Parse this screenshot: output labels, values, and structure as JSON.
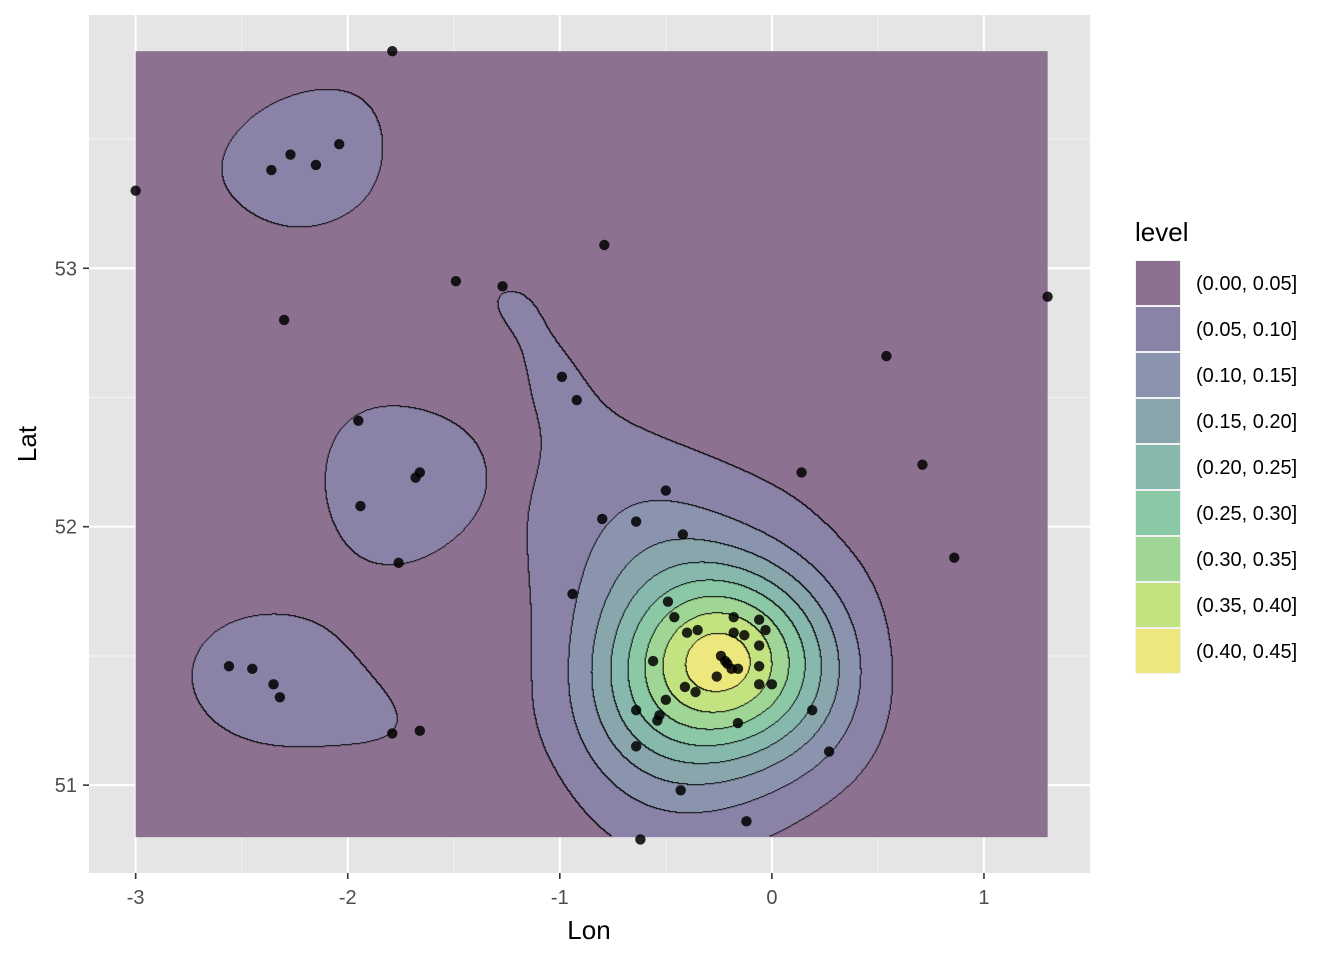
{
  "chart_data": {
    "type": "contour",
    "title": "",
    "xlabel": "Lon",
    "ylabel": "Lat",
    "xlim": [
      -3.22,
      1.5
    ],
    "ylim": [
      50.66,
      53.98
    ],
    "x_ticks": [
      -3,
      -2,
      -1,
      0,
      1
    ],
    "x_tick_labels": [
      "-3",
      "-2",
      "-1",
      "0",
      "1"
    ],
    "y_ticks": [
      51,
      52,
      53
    ],
    "y_tick_labels": [
      "51",
      "52",
      "53"
    ],
    "grid": true,
    "background": "#e5e5e5",
    "fill_extent": {
      "x": [
        -3.0,
        1.3
      ],
      "y": [
        50.8,
        53.84
      ]
    },
    "legend": {
      "title": "level",
      "position": "right",
      "entries": [
        {
          "label": "(0.00, 0.05]",
          "color": "#8c7290"
        },
        {
          "label": "(0.05, 0.10]",
          "color": "#8b82a8"
        },
        {
          "label": "(0.10, 0.15]",
          "color": "#8b94ae"
        },
        {
          "label": "(0.15, 0.20]",
          "color": "#89a6ad"
        },
        {
          "label": "(0.20, 0.25]",
          "color": "#86b8ad"
        },
        {
          "label": "(0.25, 0.30]",
          "color": "#8bc8a6"
        },
        {
          "label": "(0.30, 0.35]",
          "color": "#9fd696"
        },
        {
          "label": "(0.35, 0.40]",
          "color": "#c3e280"
        },
        {
          "label": "(0.40, 0.45]",
          "color": "#ede87e"
        }
      ]
    },
    "points": [
      [
        -3.0,
        53.3
      ],
      [
        -1.79,
        53.84
      ],
      [
        -2.04,
        53.48
      ],
      [
        -2.27,
        53.44
      ],
      [
        -2.15,
        53.4
      ],
      [
        -2.36,
        53.38
      ],
      [
        -0.79,
        53.09
      ],
      [
        -1.49,
        52.95
      ],
      [
        -1.27,
        52.93
      ],
      [
        -2.3,
        52.8
      ],
      [
        1.3,
        52.89
      ],
      [
        0.54,
        52.66
      ],
      [
        -0.99,
        52.58
      ],
      [
        -0.92,
        52.49
      ],
      [
        -1.95,
        52.41
      ],
      [
        -1.66,
        52.21
      ],
      [
        -1.68,
        52.19
      ],
      [
        0.71,
        52.24
      ],
      [
        0.14,
        52.21
      ],
      [
        -0.5,
        52.14
      ],
      [
        -1.94,
        52.08
      ],
      [
        -0.8,
        52.03
      ],
      [
        -0.64,
        52.02
      ],
      [
        -0.42,
        51.97
      ],
      [
        -1.76,
        51.86
      ],
      [
        0.86,
        51.88
      ],
      [
        -0.94,
        51.74
      ],
      [
        -0.49,
        51.71
      ],
      [
        -0.46,
        51.65
      ],
      [
        -0.18,
        51.65
      ],
      [
        -0.06,
        51.64
      ],
      [
        -0.35,
        51.6
      ],
      [
        -0.4,
        51.59
      ],
      [
        -0.18,
        51.59
      ],
      [
        -0.13,
        51.58
      ],
      [
        -0.03,
        51.6
      ],
      [
        -0.06,
        51.54
      ],
      [
        -0.24,
        51.5
      ],
      [
        -0.22,
        51.48
      ],
      [
        -0.56,
        51.48
      ],
      [
        -0.21,
        51.47
      ],
      [
        -0.16,
        51.45
      ],
      [
        -0.19,
        51.45
      ],
      [
        -0.06,
        51.46
      ],
      [
        -2.56,
        51.46
      ],
      [
        -2.45,
        51.45
      ],
      [
        -0.26,
        51.42
      ],
      [
        -0.41,
        51.38
      ],
      [
        -0.36,
        51.36
      ],
      [
        -0.06,
        51.39
      ],
      [
        0.0,
        51.39
      ],
      [
        -2.35,
        51.39
      ],
      [
        -2.32,
        51.34
      ],
      [
        -0.5,
        51.33
      ],
      [
        -0.64,
        51.29
      ],
      [
        0.19,
        51.29
      ],
      [
        -0.53,
        51.27
      ],
      [
        -0.54,
        51.25
      ],
      [
        -0.16,
        51.24
      ],
      [
        -1.79,
        51.2
      ],
      [
        -1.66,
        51.21
      ],
      [
        -0.64,
        51.15
      ],
      [
        0.27,
        51.13
      ],
      [
        -0.43,
        50.98
      ],
      [
        -0.12,
        50.86
      ],
      [
        -0.62,
        50.79
      ]
    ],
    "point_color": "#000000"
  }
}
